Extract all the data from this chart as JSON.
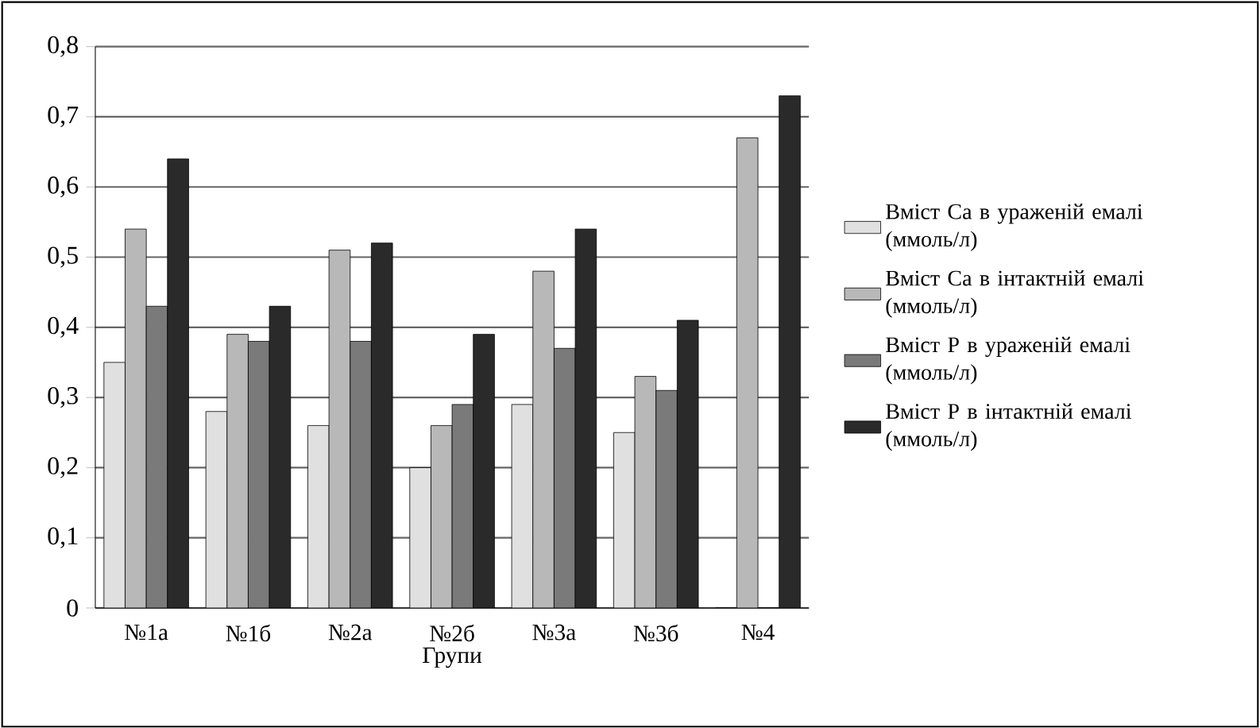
{
  "chart_data": {
    "type": "bar",
    "xlabel": "Групи",
    "categories": [
      "№1а",
      "№1б",
      "№2а",
      "№2б",
      "№3а",
      "№3б",
      "№4"
    ],
    "series": [
      {
        "name": "Вміст Ca в ураженій емалі (ммоль/л)",
        "color": "#e0e0e0",
        "values": [
          0.35,
          0.28,
          0.26,
          0.2,
          0.29,
          0.25,
          0
        ]
      },
      {
        "name": "Вміст Ca в інтактній емалі (ммоль/л)",
        "color": "#b8b8b8",
        "values": [
          0.54,
          0.39,
          0.51,
          0.26,
          0.48,
          0.33,
          0.67
        ]
      },
      {
        "name": "Вміст P в ураженій емалі (ммоль/л)",
        "color": "#7a7a7a",
        "values": [
          0.43,
          0.38,
          0.38,
          0.29,
          0.37,
          0.31,
          0
        ]
      },
      {
        "name": "Вміст P в інтактній емалі (ммоль/л)",
        "color": "#2a2a2a",
        "values": [
          0.64,
          0.43,
          0.52,
          0.39,
          0.54,
          0.41,
          0.73
        ]
      }
    ],
    "ylim": [
      0,
      0.8
    ],
    "yticks": [
      {
        "value": 0,
        "label": "0"
      },
      {
        "value": 0.1,
        "label": "0,1"
      },
      {
        "value": 0.2,
        "label": "0,2"
      },
      {
        "value": 0.3,
        "label": "0,3"
      },
      {
        "value": 0.4,
        "label": "0,4"
      },
      {
        "value": 0.5,
        "label": "0,5"
      },
      {
        "value": 0.6,
        "label": "0,6"
      },
      {
        "value": 0.7,
        "label": "0,7"
      },
      {
        "value": 0.8,
        "label": "0,8"
      }
    ],
    "grid": "y",
    "legend": "right"
  }
}
